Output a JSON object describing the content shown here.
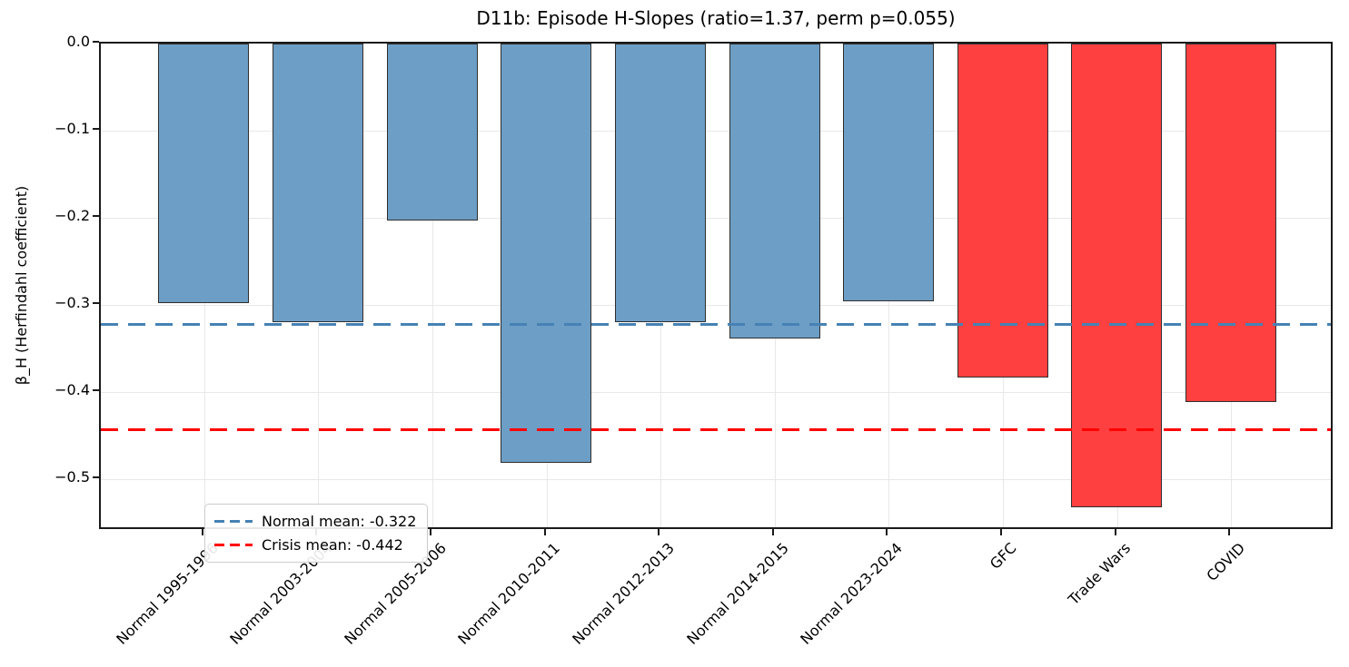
{
  "title": "D11b: Episode H-Slopes (ratio=1.37, perm p=0.055)",
  "ylabel": "β_H (Herfindahl coefficient)",
  "chart_data": {
    "type": "bar",
    "title": "D11b: Episode H-Slopes (ratio=1.37, perm p=0.055)",
    "xlabel": "",
    "ylabel": "β_H (Herfindahl coefficient)",
    "categories": [
      "Normal 1995-1996",
      "Normal 2003-2004",
      "Normal 2005-2006",
      "Normal 2010-2011",
      "Normal 2012-2013",
      "Normal 2014-2015",
      "Normal 2023-2024",
      "GFC",
      "Trade Wars",
      "COVID"
    ],
    "values": [
      -0.298,
      -0.32,
      -0.203,
      -0.481,
      -0.32,
      -0.338,
      -0.296,
      -0.383,
      -0.532,
      -0.411
    ],
    "groups": [
      "normal",
      "normal",
      "normal",
      "normal",
      "normal",
      "normal",
      "normal",
      "crisis",
      "crisis",
      "crisis"
    ],
    "ylim": [
      -0.559,
      0.0
    ],
    "yticks": [
      0.0,
      -0.1,
      -0.2,
      -0.3,
      -0.4,
      -0.5
    ],
    "ytick_labels": [
      "0.0",
      "−0.1",
      "−0.2",
      "−0.3",
      "−0.4",
      "−0.5"
    ],
    "grid": true,
    "legend_position": "lower left",
    "reference_lines": [
      {
        "name": "normal-mean",
        "value": -0.322,
        "label": "Normal mean: -0.322",
        "color": "#4682B4",
        "style": "dashed"
      },
      {
        "name": "crisis-mean",
        "value": -0.442,
        "label": "Crisis mean: -0.442",
        "color": "#FF0000",
        "style": "dashed"
      }
    ],
    "colors": {
      "normal_bar": "#6D9EC5",
      "crisis_bar": "#FF4040",
      "bar_edge": "#2F2F2F",
      "gridline": "#E8E8E8"
    }
  }
}
